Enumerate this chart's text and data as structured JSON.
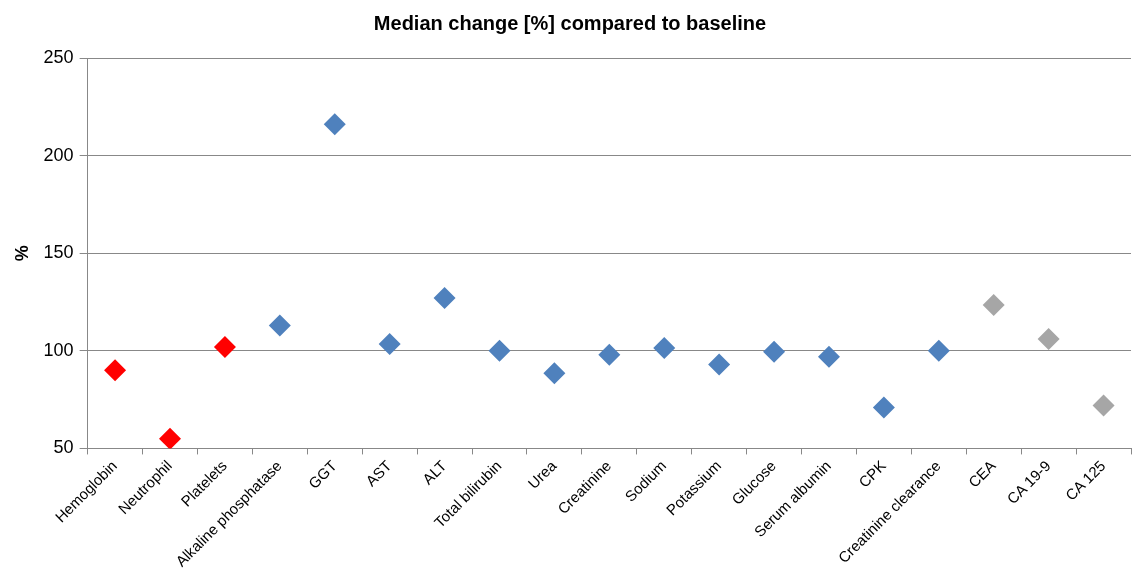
{
  "chart_data": {
    "type": "scatter",
    "title": "Median change [%] compared to baseline",
    "ylabel": "%",
    "categories": [
      "Hemoglobin",
      "Neutrophil",
      "Platelets",
      "Alkaline phosphatase",
      "GGT",
      "AST",
      "ALT",
      "Total bilirubin",
      "Urea",
      "Creatinine",
      "Sodium",
      "Potassium",
      "Glucose",
      "Serum albumin",
      "CPK",
      "Creatinine clearance",
      "CEA",
      "CA 19-9",
      "CA 125"
    ],
    "values": [
      90,
      55,
      102,
      113,
      216,
      103.5,
      127,
      100,
      88.5,
      98,
      101.5,
      93,
      99.5,
      97,
      71,
      100,
      123.5,
      106,
      72
    ],
    "colors": [
      "#ff0000",
      "#ff0000",
      "#ff0000",
      "#4f81bd",
      "#4f81bd",
      "#4f81bd",
      "#4f81bd",
      "#4f81bd",
      "#4f81bd",
      "#4f81bd",
      "#4f81bd",
      "#4f81bd",
      "#4f81bd",
      "#4f81bd",
      "#4f81bd",
      "#4f81bd",
      "#a6a6a6",
      "#a6a6a6",
      "#a6a6a6"
    ],
    "ylim": [
      50,
      250
    ],
    "yticks": [
      50,
      100,
      150,
      200,
      250
    ],
    "grid": "y",
    "legend": false,
    "marker": "diamond"
  }
}
